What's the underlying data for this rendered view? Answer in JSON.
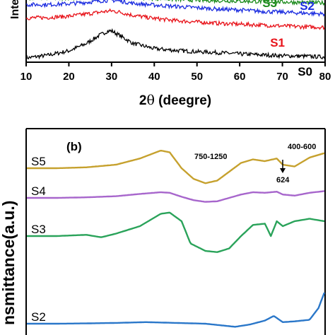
{
  "chart_data": [
    {
      "panel": "a",
      "type": "line",
      "xlabel_main": "2",
      "xlabel_theta": "θ",
      "xlabel_rest": " (deegre)",
      "ylabel_visible": "Inte",
      "xlim": [
        10,
        80
      ],
      "xticks": [
        10,
        20,
        30,
        40,
        50,
        60,
        70,
        80
      ],
      "series": [
        {
          "name": "S0",
          "color": "#000000",
          "x": [
            10,
            15,
            20,
            24,
            27,
            29,
            30,
            32,
            35,
            40,
            45,
            50,
            55,
            60,
            65,
            70,
            75,
            80
          ],
          "y": [
            0.0,
            0.6,
            1.6,
            3.2,
            5.0,
            6.0,
            6.1,
            5.0,
            3.3,
            2.1,
            1.7,
            1.4,
            1.2,
            0.9,
            0.7,
            0.5,
            0.4,
            0.2
          ]
        },
        {
          "name": "S1",
          "color": "#e8141b",
          "x": [
            10,
            15,
            20,
            25,
            28,
            30,
            32,
            35,
            40,
            45,
            50,
            55,
            60,
            65,
            70,
            75,
            80
          ],
          "y": [
            9.0,
            9.1,
            9.4,
            10.0,
            10.4,
            10.6,
            10.3,
            9.6,
            8.9,
            8.4,
            8.1,
            7.8,
            7.6,
            7.4,
            7.2,
            7.0,
            6.9
          ]
        },
        {
          "name": "S2",
          "color": "#1c2de0",
          "x": [
            10,
            15,
            20,
            25,
            28,
            30,
            32,
            35,
            40,
            45,
            50,
            55,
            60,
            65,
            70,
            75,
            80
          ],
          "y": [
            12.0,
            12.0,
            12.2,
            12.6,
            12.9,
            13.0,
            12.8,
            12.3,
            11.9,
            11.6,
            11.3,
            11.0,
            10.8,
            10.5,
            10.3,
            10.1,
            9.9
          ]
        },
        {
          "name": "S3",
          "color": "#1b8a1b",
          "x": [
            10,
            15,
            20,
            25,
            30,
            35,
            40,
            45,
            50,
            55,
            60,
            65,
            70,
            75,
            80
          ],
          "y": [
            13.4,
            13.4,
            13.5,
            13.6,
            13.8,
            13.6,
            13.4,
            13.2,
            13.0,
            12.9,
            12.8,
            12.7,
            12.6,
            12.5,
            12.4
          ]
        }
      ],
      "labels": [
        {
          "text": "S0",
          "color": "#000000"
        },
        {
          "text": "S1",
          "color": "#e8141b"
        },
        {
          "text": "S2",
          "color": "#1c2de0"
        },
        {
          "text": "S3",
          "color": "#1b8a1b"
        }
      ]
    },
    {
      "panel": "b",
      "panel_label": "(b)",
      "type": "line",
      "ylabel_visible": "nsmittance(a.u.)",
      "series": [
        {
          "name": "S5",
          "color": "#c6a12e",
          "x": [
            0,
            0.1,
            0.2,
            0.3,
            0.38,
            0.45,
            0.48,
            0.52,
            0.56,
            0.6,
            0.64,
            0.68,
            0.72,
            0.76,
            0.8,
            0.84,
            0.86,
            0.9,
            0.95,
            1.0
          ],
          "y": [
            0.0,
            0.0,
            0.05,
            0.2,
            0.55,
            1.0,
            0.9,
            0.0,
            -0.6,
            -0.85,
            -0.7,
            -0.2,
            0.3,
            0.5,
            0.4,
            0.55,
            0.2,
            0.1,
            0.6,
            0.85
          ]
        },
        {
          "name": "S4",
          "color": "#a766cc",
          "x": [
            0,
            0.1,
            0.2,
            0.3,
            0.38,
            0.45,
            0.48,
            0.52,
            0.56,
            0.6,
            0.64,
            0.68,
            0.72,
            0.76,
            0.8,
            0.84,
            0.86,
            0.9,
            0.95,
            1.0
          ],
          "y": [
            0.0,
            0.0,
            0.05,
            0.15,
            0.35,
            0.5,
            0.45,
            0.1,
            -0.2,
            -0.35,
            -0.3,
            0.0,
            0.3,
            0.5,
            0.45,
            0.55,
            0.3,
            0.2,
            0.45,
            0.6
          ]
        },
        {
          "name": "S3",
          "color": "#2aa35a",
          "x": [
            0,
            0.1,
            0.2,
            0.25,
            0.3,
            0.38,
            0.45,
            0.48,
            0.52,
            0.55,
            0.6,
            0.64,
            0.68,
            0.72,
            0.76,
            0.8,
            0.82,
            0.84,
            0.86,
            0.9,
            0.95,
            1.0
          ],
          "y": [
            0.0,
            0.0,
            0.05,
            -0.05,
            0.1,
            0.4,
            0.9,
            0.95,
            0.6,
            -0.3,
            -0.6,
            -0.65,
            -0.5,
            0.0,
            0.45,
            0.5,
            0.0,
            0.6,
            0.4,
            0.6,
            0.7,
            0.6
          ]
        },
        {
          "name": "S2",
          "color": "#2a77c9",
          "x": [
            0,
            0.1,
            0.2,
            0.3,
            0.4,
            0.5,
            0.6,
            0.65,
            0.7,
            0.75,
            0.8,
            0.83,
            0.86,
            0.9,
            0.95,
            0.98,
            1.0
          ],
          "y": [
            0.0,
            0.0,
            0.02,
            0.05,
            0.1,
            0.05,
            0.0,
            -0.1,
            -0.2,
            -0.05,
            0.2,
            0.5,
            0.1,
            0.15,
            0.25,
            1.0,
            2.0
          ]
        }
      ],
      "annotations": [
        {
          "text": "750-1250"
        },
        {
          "text": "400-600"
        },
        {
          "text": "624"
        }
      ]
    }
  ]
}
